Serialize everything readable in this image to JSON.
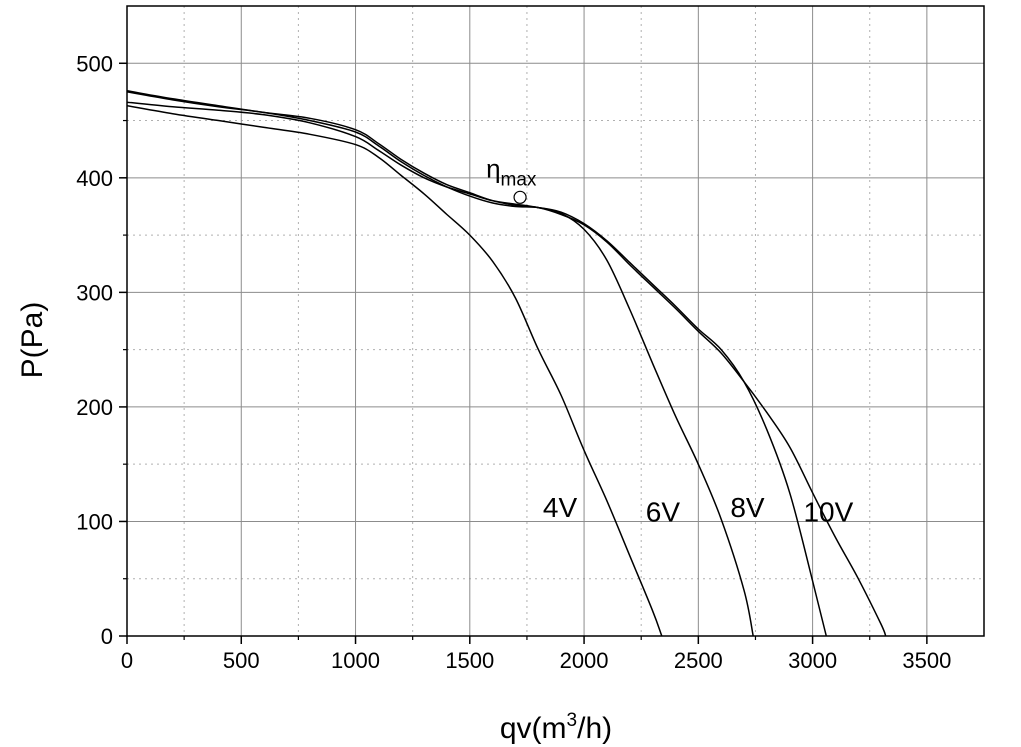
{
  "chart_data": {
    "type": "line",
    "title": "",
    "xlabel_main": "qv(m",
    "xlabel_sup": "3",
    "xlabel_end": "/h)",
    "ylabel": "P(Pa)",
    "xlim": [
      0,
      3750
    ],
    "ylim": [
      0,
      550
    ],
    "xticks": [
      0,
      500,
      1000,
      1500,
      2000,
      2500,
      3000,
      3500
    ],
    "yticks": [
      0,
      100,
      200,
      300,
      400,
      500
    ],
    "x_minor_step": 250,
    "y_minor_step": 50,
    "grid": true,
    "colors": {
      "line": "#000000",
      "grid": "#8c8c8c",
      "minor_grid": "#b0b0b0"
    },
    "annotation": {
      "symbol": "η",
      "subscript": "max",
      "x": 1720,
      "y": 383
    },
    "series": [
      {
        "name": "4V",
        "label_at": [
          1820,
          104
        ],
        "points": [
          [
            0,
            463
          ],
          [
            200,
            456
          ],
          [
            400,
            450
          ],
          [
            600,
            444
          ],
          [
            800,
            438
          ],
          [
            1000,
            429
          ],
          [
            1100,
            418
          ],
          [
            1200,
            402
          ],
          [
            1300,
            386
          ],
          [
            1400,
            368
          ],
          [
            1500,
            350
          ],
          [
            1600,
            327
          ],
          [
            1700,
            295
          ],
          [
            1800,
            250
          ],
          [
            1900,
            210
          ],
          [
            2000,
            162
          ],
          [
            2100,
            118
          ],
          [
            2200,
            70
          ],
          [
            2300,
            22
          ],
          [
            2340,
            0
          ]
        ]
      },
      {
        "name": "6V",
        "label_at": [
          2270,
          100
        ],
        "points": [
          [
            0,
            466
          ],
          [
            200,
            462
          ],
          [
            400,
            459
          ],
          [
            600,
            455
          ],
          [
            800,
            448
          ],
          [
            1000,
            436
          ],
          [
            1100,
            424
          ],
          [
            1200,
            411
          ],
          [
            1300,
            400
          ],
          [
            1400,
            392
          ],
          [
            1500,
            386
          ],
          [
            1600,
            380
          ],
          [
            1700,
            377
          ],
          [
            1800,
            374
          ],
          [
            1900,
            369
          ],
          [
            2000,
            355
          ],
          [
            2100,
            328
          ],
          [
            2200,
            285
          ],
          [
            2300,
            238
          ],
          [
            2400,
            192
          ],
          [
            2500,
            150
          ],
          [
            2600,
            102
          ],
          [
            2700,
            40
          ],
          [
            2740,
            0
          ]
        ]
      },
      {
        "name": "8V",
        "label_at": [
          2640,
          104
        ],
        "points": [
          [
            0,
            475
          ],
          [
            200,
            468
          ],
          [
            400,
            462
          ],
          [
            600,
            457
          ],
          [
            800,
            450
          ],
          [
            1000,
            440
          ],
          [
            1100,
            428
          ],
          [
            1200,
            414
          ],
          [
            1300,
            402
          ],
          [
            1400,
            392
          ],
          [
            1500,
            384
          ],
          [
            1600,
            378
          ],
          [
            1700,
            375
          ],
          [
            1800,
            374
          ],
          [
            1900,
            370
          ],
          [
            2000,
            360
          ],
          [
            2100,
            345
          ],
          [
            2200,
            326
          ],
          [
            2300,
            307
          ],
          [
            2400,
            288
          ],
          [
            2500,
            268
          ],
          [
            2600,
            250
          ],
          [
            2700,
            222
          ],
          [
            2800,
            180
          ],
          [
            2900,
            125
          ],
          [
            3000,
            48
          ],
          [
            3060,
            0
          ]
        ]
      },
      {
        "name": "10V",
        "label_at": [
          2960,
          100
        ],
        "points": [
          [
            0,
            476
          ],
          [
            200,
            469
          ],
          [
            400,
            463
          ],
          [
            600,
            457
          ],
          [
            800,
            452
          ],
          [
            1000,
            442
          ],
          [
            1100,
            430
          ],
          [
            1200,
            416
          ],
          [
            1300,
            404
          ],
          [
            1400,
            394
          ],
          [
            1500,
            387
          ],
          [
            1600,
            380
          ],
          [
            1700,
            376
          ],
          [
            1800,
            374
          ],
          [
            1900,
            368
          ],
          [
            2000,
            359
          ],
          [
            2100,
            344
          ],
          [
            2200,
            324
          ],
          [
            2300,
            305
          ],
          [
            2400,
            286
          ],
          [
            2500,
            266
          ],
          [
            2600,
            247
          ],
          [
            2700,
            222
          ],
          [
            2800,
            195
          ],
          [
            2900,
            165
          ],
          [
            3000,
            125
          ],
          [
            3100,
            86
          ],
          [
            3200,
            50
          ],
          [
            3300,
            10
          ],
          [
            3320,
            0
          ]
        ]
      }
    ]
  }
}
